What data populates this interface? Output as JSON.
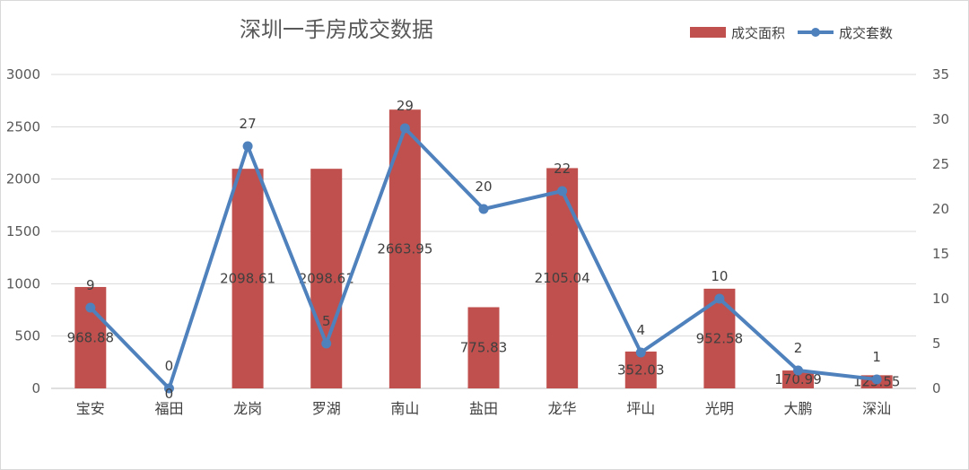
{
  "chart_data": {
    "type": "bar",
    "title": "深圳一手房成交数据",
    "categories": [
      "宝安",
      "福田",
      "龙岗",
      "罗湖",
      "南山",
      "盐田",
      "龙华",
      "坪山",
      "光明",
      "大鹏",
      "深汕"
    ],
    "series": [
      {
        "name": "成交面积",
        "type": "bar",
        "axis": "left",
        "color": "#c0504d",
        "values": [
          968.88,
          0,
          2098.61,
          2098.61,
          2663.95,
          775.83,
          2105.04,
          352.03,
          952.58,
          170.99,
          125.55
        ],
        "labels": [
          "968.88",
          "",
          "2098.61",
          "2098.61",
          "2663.95",
          "775.83",
          "2105.04",
          "352.03",
          "952.58",
          "170.99",
          "125.55"
        ]
      },
      {
        "name": "成交套数",
        "type": "line",
        "axis": "right",
        "color": "#4f81bd",
        "values": [
          9,
          0,
          27,
          5,
          29,
          20,
          22,
          4,
          10,
          2,
          1
        ],
        "labels": [
          "9",
          "0",
          "27",
          "5",
          "29",
          "20",
          "22",
          "4",
          "10",
          "2",
          "1"
        ]
      }
    ],
    "y_left": {
      "min": 0,
      "max": 3000,
      "ticks": [
        "0",
        "500",
        "1000",
        "1500",
        "2000",
        "2500",
        "3000"
      ]
    },
    "y_right": {
      "min": 0,
      "max": 35,
      "ticks": [
        "0",
        "5",
        "10",
        "15",
        "20",
        "25",
        "30",
        "35"
      ]
    },
    "grid": true,
    "legend_position": "top-right",
    "extra_labels": [
      {
        "category_index": 1,
        "text": "0"
      }
    ]
  }
}
